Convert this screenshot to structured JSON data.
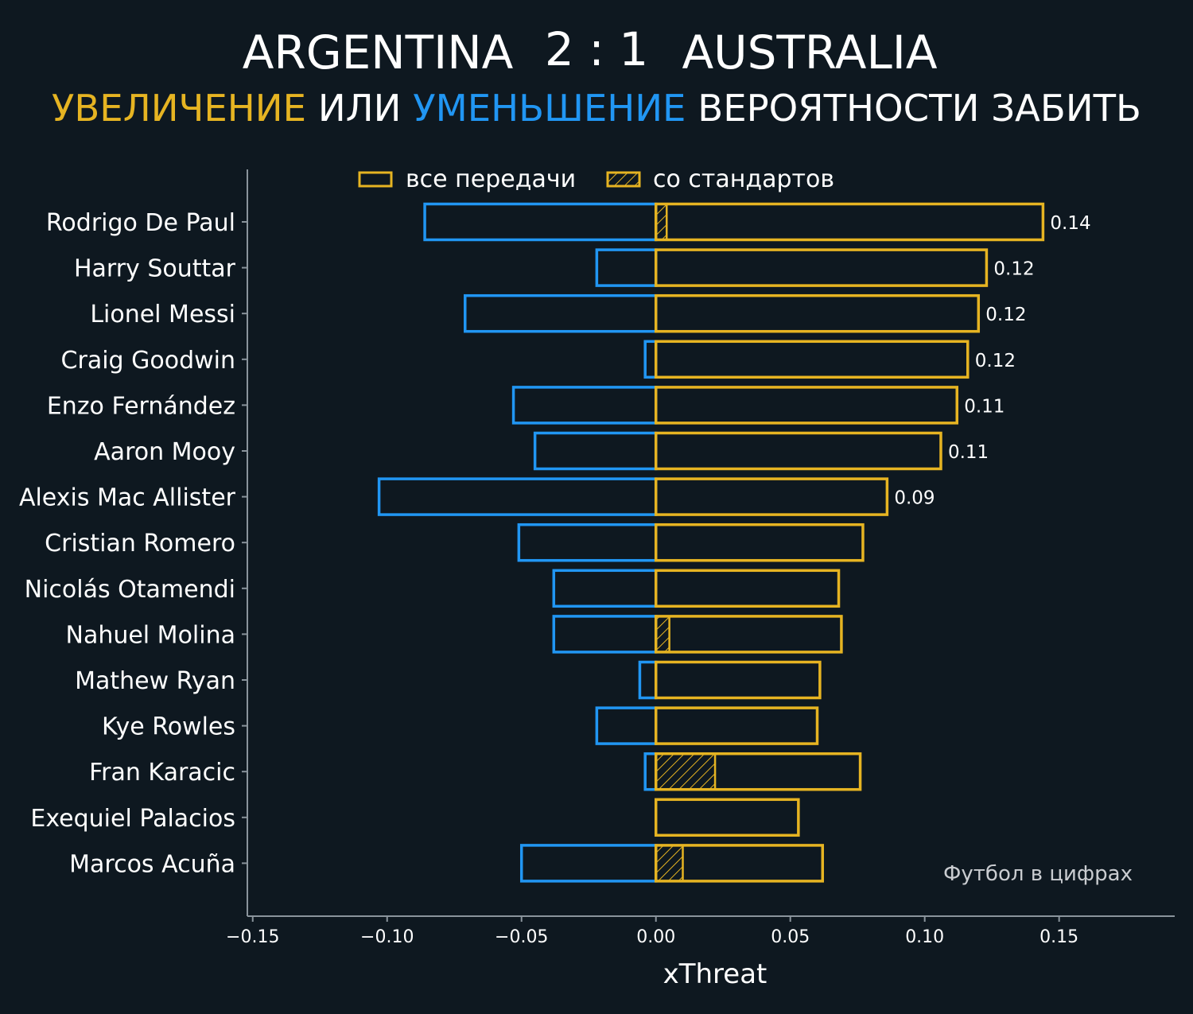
{
  "title": {
    "home": "ARGENTINA",
    "score": "2 : 1",
    "away": "AUSTRALIA"
  },
  "subtitle": {
    "part1": "УВЕЛИЧЕНИЕ",
    "part2": " ИЛИ ",
    "part3": "УМЕНЬШЕНИЕ",
    "part4": " ВЕРОЯТНОСТИ ЗАБИТЬ"
  },
  "colors": {
    "background": "#0e1820",
    "increase": "#e6b422",
    "decrease": "#2196f3",
    "axis": "#8a949c"
  },
  "legend": {
    "all_passes": "все передачи",
    "set_pieces": "со стандартов"
  },
  "credit": "Футбол в цифрах",
  "chart_data": {
    "type": "bar",
    "orientation": "horizontal",
    "xlabel": "xThreat",
    "xlim": [
      -0.152,
      0.193
    ],
    "xticks": [
      -0.15,
      -0.1,
      -0.05,
      0.0,
      0.05,
      0.1,
      0.15
    ],
    "xtick_labels": [
      "−0.15",
      "−0.10",
      "−0.05",
      "0.00",
      "0.05",
      "0.10",
      "0.15"
    ],
    "legend_position": "top-center",
    "categories": [
      "Rodrigo De Paul",
      "Harry Souttar",
      "Lionel Messi",
      "Craig Goodwin",
      "Enzo Fernández",
      "Aaron Mooy",
      "Alexis Mac Allister",
      "Cristian Romero",
      "Nicolás Otamendi",
      "Nahuel Molina",
      "Mathew Ryan",
      "Kye Rowles",
      "Fran Karacic",
      "Exequiel Palacios",
      "Marcos Acuña"
    ],
    "series": [
      {
        "name": "все передачи",
        "positive": [
          0.144,
          0.123,
          0.12,
          0.116,
          0.112,
          0.106,
          0.086,
          0.077,
          0.068,
          0.069,
          0.061,
          0.06,
          0.076,
          0.053,
          0.062
        ],
        "negative": [
          -0.086,
          -0.022,
          -0.071,
          -0.004,
          -0.053,
          -0.045,
          -0.103,
          -0.051,
          -0.038,
          -0.038,
          -0.006,
          -0.022,
          -0.004,
          0.0,
          -0.05
        ]
      },
      {
        "name": "со стандартов",
        "positive": [
          0.004,
          0.0,
          0.0,
          0.0,
          0.0,
          0.0,
          0.0,
          0.0,
          0.0,
          0.005,
          0.0,
          0.0,
          0.022,
          0.0,
          0.01
        ]
      }
    ],
    "value_labels": [
      "0.14",
      "0.12",
      "0.12",
      "0.12",
      "0.11",
      "0.11",
      "0.09",
      "",
      "",
      "",
      "",
      "",
      "",
      "",
      ""
    ]
  }
}
